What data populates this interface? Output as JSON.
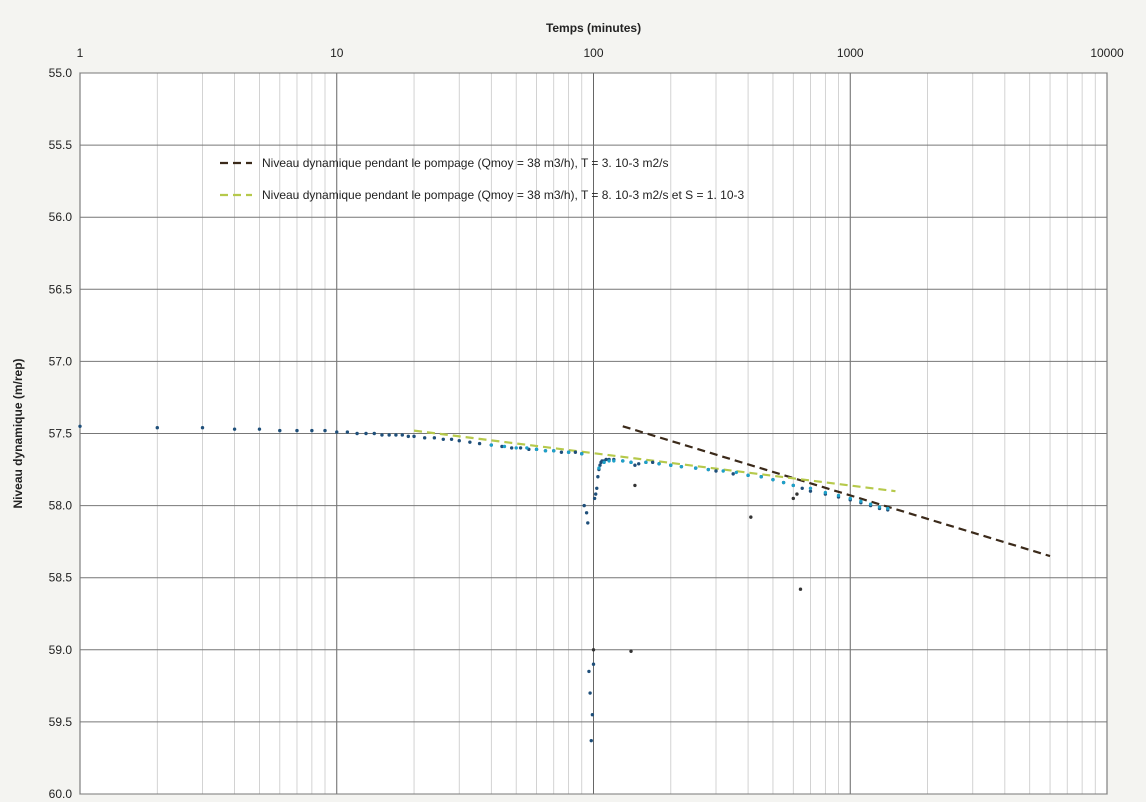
{
  "chart_data": {
    "type": "scatter",
    "title": "",
    "xlabel": "Temps (minutes)",
    "ylabel": "Niveau dynamique (m/rep)",
    "x_scale": "log",
    "xlim": [
      1,
      10000
    ],
    "ylim": [
      55.0,
      60.0
    ],
    "y_inverted": true,
    "x_ticks": [
      "1",
      "10",
      "100",
      "1000",
      "10000"
    ],
    "y_ticks": [
      "55.0",
      "55.5",
      "56.0",
      "56.5",
      "57.0",
      "57.5",
      "58.0",
      "58.5",
      "59.0",
      "59.5",
      "60.0"
    ],
    "grid": true,
    "legend_position": "upper-left inside plot",
    "series": [
      {
        "kind": "points",
        "color": "#1f4f7a",
        "x": [
          1,
          2,
          3,
          4,
          5,
          6,
          7,
          8,
          9,
          10,
          11,
          12,
          13,
          14,
          15,
          16,
          17,
          18,
          19,
          20,
          22,
          24,
          26,
          28,
          30,
          33,
          36,
          40,
          44,
          48,
          52,
          56,
          60,
          65,
          70,
          75,
          80,
          85,
          90,
          92,
          94,
          95,
          96,
          97,
          98,
          99,
          100,
          101,
          102,
          103,
          104,
          105,
          106,
          107,
          108,
          110,
          112,
          115,
          120,
          130,
          140,
          145,
          150,
          160,
          170,
          180,
          200,
          220,
          250,
          280,
          300,
          350,
          400,
          450,
          500,
          550,
          600,
          650,
          700,
          800,
          900,
          1000,
          1100,
          1200,
          1300,
          1400
        ],
        "y": [
          57.45,
          57.46,
          57.46,
          57.47,
          57.47,
          57.48,
          57.48,
          57.48,
          57.48,
          57.49,
          57.49,
          57.5,
          57.5,
          57.5,
          57.51,
          57.51,
          57.51,
          57.51,
          57.52,
          57.52,
          57.53,
          57.53,
          57.54,
          57.54,
          57.55,
          57.56,
          57.57,
          57.58,
          57.59,
          57.6,
          57.6,
          57.61,
          57.61,
          57.62,
          57.62,
          57.63,
          57.63,
          57.63,
          57.64,
          58.0,
          58.05,
          58.12,
          59.15,
          59.3,
          59.63,
          59.45,
          59.1,
          57.95,
          57.92,
          57.88,
          57.8,
          57.75,
          57.72,
          57.7,
          57.69,
          57.69,
          57.68,
          57.68,
          57.68,
          57.69,
          57.7,
          57.72,
          57.71,
          57.7,
          57.7,
          57.71,
          57.72,
          57.73,
          57.74,
          57.75,
          57.76,
          57.78,
          57.79,
          57.8,
          57.82,
          57.84,
          57.86,
          57.88,
          57.9,
          57.92,
          57.94,
          57.96,
          57.98,
          58.0,
          58.02,
          58.03
        ]
      },
      {
        "kind": "points",
        "color": "#1ea0c8",
        "x": [
          40,
          45,
          50,
          55,
          60,
          65,
          70,
          80,
          90,
          105,
          110,
          115,
          120,
          130,
          140,
          160,
          180,
          200,
          220,
          250,
          280,
          320,
          360,
          400,
          450,
          500,
          550,
          600,
          700,
          800,
          900,
          1000,
          1100,
          1200,
          1300,
          1400
        ],
        "y": [
          57.58,
          57.59,
          57.6,
          57.6,
          57.61,
          57.62,
          57.62,
          57.63,
          57.64,
          57.74,
          57.7,
          57.69,
          57.69,
          57.69,
          57.7,
          57.7,
          57.71,
          57.72,
          57.73,
          57.74,
          57.75,
          57.76,
          57.77,
          57.79,
          57.8,
          57.82,
          57.84,
          57.86,
          57.88,
          57.91,
          57.93,
          57.95,
          57.97,
          57.99,
          58.01,
          58.02
        ]
      },
      {
        "kind": "points",
        "color": "#333333",
        "x": [
          145,
          410,
          600,
          620,
          640,
          100,
          140
        ],
        "y": [
          57.86,
          58.08,
          57.95,
          57.92,
          58.58,
          59.0,
          59.01
        ]
      },
      {
        "kind": "line",
        "color": "#3b2a1a",
        "label": "Niveau dynamique pendant le pompage (Qmoy = 38 m3/h), T = 3. 10-3 m2/s",
        "x": [
          130,
          6000
        ],
        "y": [
          57.45,
          58.35
        ]
      },
      {
        "kind": "line",
        "color": "#b6c94b",
        "label": "Niveau dynamique pendant le pompage (Qmoy = 38 m3/h), T = 8. 10-3 m2/s et S = 1. 10-3",
        "x": [
          20,
          1500
        ],
        "y": [
          57.48,
          57.9
        ]
      }
    ]
  }
}
